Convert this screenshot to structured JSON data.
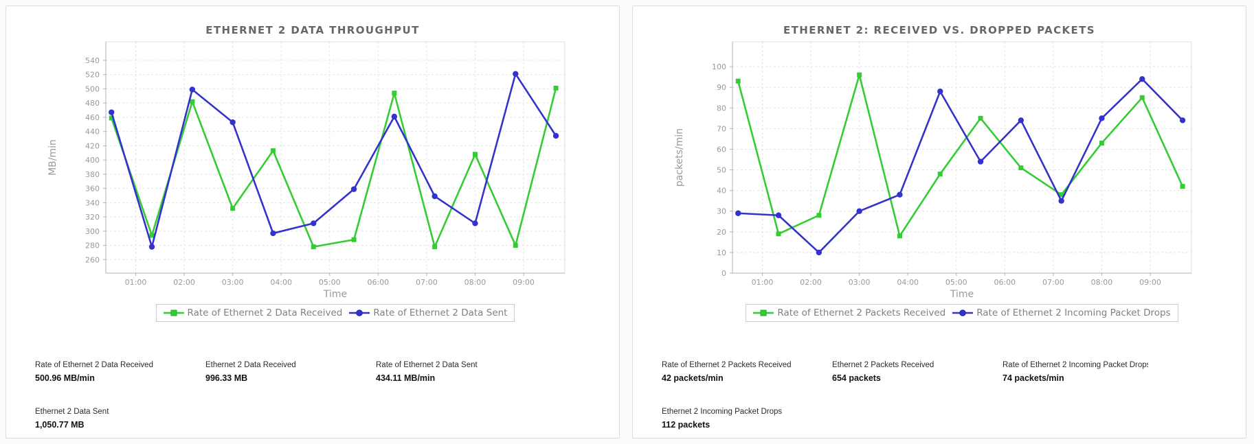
{
  "page": {
    "background": "#fbfbfb"
  },
  "colors": {
    "received_green": "#33cc33",
    "sent_blue": "#3333cc"
  },
  "charts": [
    {
      "chart_data": {
        "type": "line",
        "title": "ETHERNET 2 DATA THROUGHPUT",
        "xlabel": "Time",
        "ylabel": "MB/min",
        "x_times": [
          "00:30",
          "01:20",
          "02:10",
          "03:00",
          "03:50",
          "04:40",
          "05:30",
          "06:20",
          "07:10",
          "08:00",
          "08:50",
          "09:40"
        ],
        "xticks": [
          "01:00",
          "02:00",
          "03:00",
          "04:00",
          "05:00",
          "06:00",
          "07:00",
          "08:00",
          "09:00"
        ],
        "ylim": [
          260,
          540
        ],
        "ytick_step": 20,
        "grid": "dashed",
        "legend_position": "bottom",
        "axis": {
          "ydomain": [
            241,
            566
          ],
          "xdomain_minutes": [
            23,
            591
          ]
        },
        "series": [
          {
            "name": "Rate of Ethernet 2 Data Received",
            "color": "#33cc33",
            "marker": "square",
            "values": [
              459,
              294,
              482,
              332,
              413,
              278,
              288,
              494,
              278,
              408,
              280,
              501
            ]
          },
          {
            "name": "Rate of Ethernet 2 Data Sent",
            "color": "#3333cc",
            "marker": "circle",
            "values": [
              467,
              278,
              499,
              453,
              297,
              311,
              359,
              461,
              349,
              311,
              521,
              434
            ]
          }
        ]
      },
      "stats": [
        {
          "label": "Rate of Ethernet 2 Data Received",
          "value": "500.96 MB/min"
        },
        {
          "label": "Ethernet 2 Data Received",
          "value": "996.33 MB"
        },
        {
          "label": "Rate of Ethernet 2 Data Sent",
          "value": "434.11 MB/min"
        },
        {
          "label": "Ethernet 2 Data Sent",
          "value": "1,050.77 MB"
        }
      ]
    },
    {
      "chart_data": {
        "type": "line",
        "title": "ETHERNET 2: RECEIVED VS. DROPPED PACKETS",
        "xlabel": "Time",
        "ylabel": "packets/min",
        "x_times": [
          "00:30",
          "01:20",
          "02:10",
          "03:00",
          "03:50",
          "04:40",
          "05:30",
          "06:20",
          "07:10",
          "08:00",
          "08:50",
          "09:40"
        ],
        "xticks": [
          "01:00",
          "02:00",
          "03:00",
          "04:00",
          "05:00",
          "06:00",
          "07:00",
          "08:00",
          "09:00"
        ],
        "ylim": [
          0,
          100
        ],
        "ytick_step": 10,
        "grid": "dashed",
        "legend_position": "bottom",
        "axis": {
          "ydomain": [
            0,
            112
          ],
          "xdomain_minutes": [
            23,
            591
          ]
        },
        "series": [
          {
            "name": "Rate of Ethernet 2 Packets Received",
            "color": "#33cc33",
            "marker": "square",
            "values": [
              93,
              19,
              28,
              96,
              18,
              48,
              75,
              51,
              38,
              63,
              85,
              42
            ]
          },
          {
            "name": "Rate of Ethernet 2 Incoming Packet Drops",
            "color": "#3333cc",
            "marker": "circle",
            "values": [
              29,
              28,
              10,
              30,
              38,
              88,
              54,
              74,
              35,
              75,
              94,
              74
            ]
          }
        ]
      },
      "stats": [
        {
          "label": "Rate of Ethernet 2 Packets Received",
          "value": "42 packets/min"
        },
        {
          "label": "Ethernet 2 Packets Received",
          "value": "654 packets"
        },
        {
          "label": "Rate of Ethernet 2 Incoming Packet Drops",
          "value": "74 packets/min"
        },
        {
          "label": "Ethernet 2 Incoming Packet Drops",
          "value": "112 packets"
        }
      ]
    }
  ]
}
